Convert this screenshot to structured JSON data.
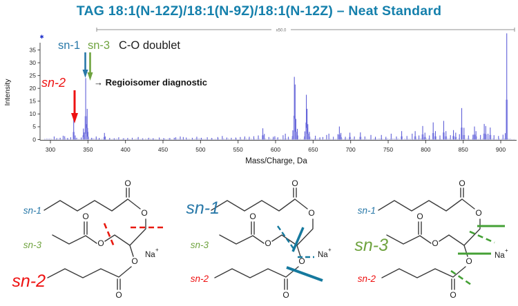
{
  "title": "TAG 18:1(N-12Z)/18:1(N-9Z)/18:1(N-12Z) – Neat Standard",
  "colors": {
    "title": "#1580AC",
    "sn1": "#2878A8",
    "sn2": "#EE1111",
    "sn3": "#6FA33F",
    "peak": "#5F5FD8",
    "peak_light": "#A6A6EC",
    "structure": "#3A3A3A",
    "cut_red": "#E8190F",
    "cut_blue": "#15799E",
    "cut_green": "#44A035"
  },
  "spectrum": {
    "ylabel": "Intensity",
    "xlabel": "Mass/Charge, Da",
    "magnification_label": "x50.0",
    "offscale_marker": "✱",
    "annotations": {
      "sn1": "sn-1",
      "sn3": "sn-3",
      "doublet": "C-O doublet",
      "sn2": "sn-2",
      "diagnostic": "→ Regioisomer diagnostic"
    }
  },
  "chart_data": {
    "type": "bar",
    "subtype": "mass-spectrum-stick-plot",
    "title": "TAG 18:1(N-12Z)/18:1(N-9Z)/18:1(N-12Z) – Neat Standard",
    "xlabel": "Mass/Charge, Da",
    "ylabel": "Intensity",
    "xlim": [
      288,
      921
    ],
    "ylim": [
      0,
      37
    ],
    "x_ticks": [
      300,
      350,
      400,
      450,
      500,
      550,
      600,
      650,
      700,
      750,
      800,
      850,
      900
    ],
    "y_ticks": [
      0,
      5,
      10,
      15,
      20,
      25,
      30,
      35
    ],
    "magnified_region": {
      "label": "x50.0",
      "from_mz": 360,
      "to_mz": 915
    },
    "key_peaks": {
      "sn2_fragment_mz": 331,
      "co_doublet_mz": [
        347,
        349
      ],
      "base_peak_mz": 908,
      "base_peak_offscale": true
    },
    "peaks": [
      [
        305,
        1.2
      ],
      [
        308,
        0.5
      ],
      [
        313,
        0.7
      ],
      [
        317,
        1.5
      ],
      [
        319,
        1.3
      ],
      [
        323,
        0.6
      ],
      [
        327,
        0.9
      ],
      [
        331,
        7.8
      ],
      [
        333,
        1.6
      ],
      [
        335,
        0.7
      ],
      [
        341,
        0.8
      ],
      [
        344,
        4.3
      ],
      [
        345,
        2.8
      ],
      [
        347,
        24.0
      ],
      [
        348,
        6.0
      ],
      [
        349,
        12.0
      ],
      [
        350,
        3.0
      ],
      [
        355,
        0.7
      ],
      [
        361,
        1.2
      ],
      [
        365,
        0.6
      ],
      [
        372,
        2.6
      ],
      [
        373,
        1.2
      ],
      [
        379,
        0.6
      ],
      [
        385,
        0.5
      ],
      [
        391,
        0.9
      ],
      [
        397,
        0.5
      ],
      [
        403,
        0.6
      ],
      [
        409,
        0.7
      ],
      [
        417,
        1.0
      ],
      [
        423,
        0.5
      ],
      [
        431,
        0.7
      ],
      [
        437,
        0.5
      ],
      [
        445,
        0.8
      ],
      [
        451,
        0.5
      ],
      [
        459,
        0.6
      ],
      [
        465,
        0.7
      ],
      [
        467,
        0.9
      ],
      [
        473,
        1.2
      ],
      [
        477,
        1.0
      ],
      [
        481,
        0.8
      ],
      [
        489,
        0.7
      ],
      [
        495,
        1.1
      ],
      [
        501,
        0.7
      ],
      [
        509,
        0.9
      ],
      [
        515,
        0.6
      ],
      [
        523,
        1.0
      ],
      [
        529,
        1.4
      ],
      [
        535,
        0.8
      ],
      [
        541,
        0.7
      ],
      [
        547,
        0.8
      ],
      [
        553,
        1.0
      ],
      [
        559,
        1.2
      ],
      [
        565,
        1.1
      ],
      [
        571,
        1.3
      ],
      [
        577,
        1.6
      ],
      [
        583,
        4.4
      ],
      [
        585,
        2.2
      ],
      [
        591,
        1.0
      ],
      [
        597,
        1.1
      ],
      [
        599,
        1.3
      ],
      [
        603,
        0.9
      ],
      [
        610,
        1.7
      ],
      [
        613,
        2.3
      ],
      [
        617,
        1.1
      ],
      [
        623,
        3.6
      ],
      [
        625,
        24.5
      ],
      [
        626,
        21.5
      ],
      [
        627,
        8.0
      ],
      [
        629,
        4.2
      ],
      [
        639,
        3.2
      ],
      [
        641,
        17.5
      ],
      [
        642,
        12.0
      ],
      [
        643,
        6.0
      ],
      [
        645,
        3.0
      ],
      [
        653,
        1.5
      ],
      [
        659,
        0.9
      ],
      [
        663,
        1.0
      ],
      [
        668,
        1.8
      ],
      [
        671,
        2.3
      ],
      [
        677,
        1.1
      ],
      [
        683,
        2.1
      ],
      [
        685,
        5.1
      ],
      [
        687,
        2.6
      ],
      [
        693,
        1.1
      ],
      [
        699,
        2.7
      ],
      [
        705,
        1.2
      ],
      [
        713,
        2.8
      ],
      [
        719,
        1.2
      ],
      [
        727,
        1.8
      ],
      [
        733,
        1.1
      ],
      [
        741,
        1.8
      ],
      [
        747,
        1.1
      ],
      [
        754,
        2.3
      ],
      [
        761,
        1.2
      ],
      [
        768,
        3.3
      ],
      [
        775,
        1.4
      ],
      [
        782,
        2.3
      ],
      [
        786,
        3.3
      ],
      [
        791,
        1.6
      ],
      [
        796,
        5.3
      ],
      [
        799,
        2.7
      ],
      [
        805,
        1.6
      ],
      [
        810,
        6.7
      ],
      [
        813,
        3.3
      ],
      [
        819,
        1.6
      ],
      [
        824,
        7.3
      ],
      [
        827,
        3.3
      ],
      [
        833,
        1.7
      ],
      [
        837,
        3.7
      ],
      [
        840,
        2.7
      ],
      [
        845,
        2.1
      ],
      [
        848,
        12.3
      ],
      [
        851,
        4.6
      ],
      [
        857,
        1.6
      ],
      [
        863,
        1.9
      ],
      [
        865,
        5.1
      ],
      [
        867,
        3.3
      ],
      [
        873,
        1.8
      ],
      [
        878,
        6.1
      ],
      [
        880,
        5.3
      ],
      [
        883,
        2.3
      ],
      [
        886,
        4.7
      ],
      [
        891,
        1.7
      ],
      [
        897,
        1.4
      ],
      [
        903,
        1.9
      ],
      [
        906,
        2.5
      ],
      [
        908,
        41.5
      ]
    ]
  },
  "structures": {
    "oxygen": "O",
    "sodium": "Na",
    "charge": "+",
    "items": [
      {
        "highlighted": "sn-2",
        "sn1": "sn-1",
        "sn3": "sn-3",
        "sn2": "sn-2"
      },
      {
        "highlighted": "sn-1",
        "sn1": "sn-1",
        "sn3": "sn-3",
        "sn2": "sn-2"
      },
      {
        "highlighted": "sn-3",
        "sn1": "sn-1",
        "sn3": "sn-3",
        "sn2": "sn-2"
      }
    ]
  }
}
